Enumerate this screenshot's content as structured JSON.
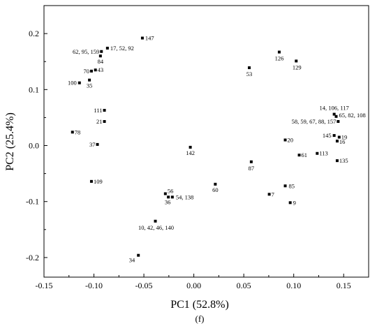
{
  "chart_data": {
    "type": "scatter",
    "title": "",
    "caption": "(f)",
    "xlabel": "PC1 (52.8%)",
    "ylabel": "PC2 (25.4%)",
    "xlim": [
      -0.15,
      0.175
    ],
    "ylim": [
      -0.235,
      0.25
    ],
    "xticks": [
      "-0.15",
      "-0.10",
      "-0.05",
      "0.00",
      "0.05",
      "0.10",
      "0.15"
    ],
    "yticks": [
      "-0.2",
      "-0.1",
      "0.0",
      "0.1",
      "0.2"
    ],
    "grid": false,
    "marker_color": "#000000",
    "points": [
      {
        "label": "147",
        "x": -0.0515,
        "y": 0.192
      },
      {
        "label": "17, 52, 92",
        "x": -0.0865,
        "y": 0.174
      },
      {
        "label": "62, 95, 159",
        "x": -0.0925,
        "y": 0.168
      },
      {
        "label": "84",
        "x": -0.0935,
        "y": 0.16
      },
      {
        "label": "70",
        "x": -0.1025,
        "y": 0.133
      },
      {
        "label": "43",
        "x": -0.0985,
        "y": 0.135
      },
      {
        "label": "35",
        "x": -0.1045,
        "y": 0.117
      },
      {
        "label": "100",
        "x": -0.1145,
        "y": 0.112
      },
      {
        "label": "111",
        "x": -0.0895,
        "y": 0.063
      },
      {
        "label": "21",
        "x": -0.0895,
        "y": 0.043
      },
      {
        "label": "78",
        "x": -0.1215,
        "y": 0.024
      },
      {
        "label": "37",
        "x": -0.0965,
        "y": 0.002
      },
      {
        "label": "109",
        "x": -0.1025,
        "y": -0.064
      },
      {
        "label": "142",
        "x": -0.0035,
        "y": -0.003
      },
      {
        "label": "56",
        "x": -0.0285,
        "y": -0.086
      },
      {
        "label": "36",
        "x": -0.0255,
        "y": -0.092
      },
      {
        "label": "54, 138",
        "x": -0.0215,
        "y": -0.092
      },
      {
        "label": "60",
        "x": 0.0215,
        "y": -0.069
      },
      {
        "label": "10, 42, 46, 140",
        "x": -0.0385,
        "y": -0.135
      },
      {
        "label": "34",
        "x": -0.0555,
        "y": -0.196
      },
      {
        "label": "53",
        "x": 0.0555,
        "y": 0.139
      },
      {
        "label": "126",
        "x": 0.0855,
        "y": 0.167
      },
      {
        "label": "129",
        "x": 0.1025,
        "y": 0.151
      },
      {
        "label": "87",
        "x": 0.0575,
        "y": -0.029
      },
      {
        "label": "7",
        "x": 0.0755,
        "y": -0.087
      },
      {
        "label": "85",
        "x": 0.0915,
        "y": -0.072
      },
      {
        "label": "9",
        "x": 0.0965,
        "y": -0.102
      },
      {
        "label": "20",
        "x": 0.0915,
        "y": 0.01
      },
      {
        "label": "61",
        "x": 0.1055,
        "y": -0.017
      },
      {
        "label": "113",
        "x": 0.1235,
        "y": -0.014
      },
      {
        "label": "14, 106, 117",
        "x": 0.1405,
        "y": 0.056
      },
      {
        "label": "65, 82, 108",
        "x": 0.1425,
        "y": 0.052
      },
      {
        "label": "58, 59, 67, 88, 157",
        "x": 0.1445,
        "y": 0.043
      },
      {
        "label": "145",
        "x": 0.1405,
        "y": 0.018
      },
      {
        "label": "19",
        "x": 0.1455,
        "y": 0.015
      },
      {
        "label": "16",
        "x": 0.1435,
        "y": 0.008
      },
      {
        "label": "135",
        "x": 0.1435,
        "y": -0.027
      }
    ]
  }
}
